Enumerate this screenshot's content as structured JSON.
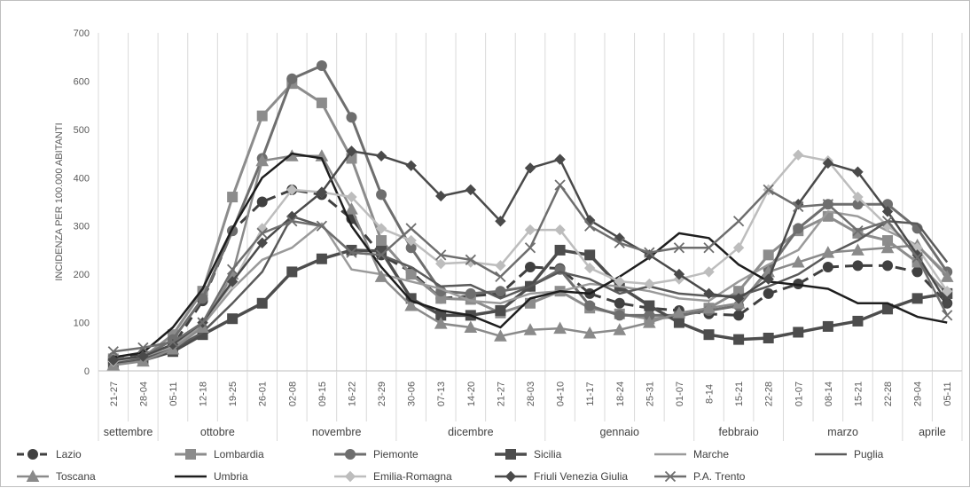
{
  "chart_data": {
    "type": "line",
    "title": "",
    "ylabel": "INCIDENZA PER 100.000 ABITANTI",
    "xlabel": "",
    "ylim": [
      0,
      700
    ],
    "yticks": [
      "0",
      "100",
      "200",
      "300",
      "400",
      "500",
      "600",
      "700"
    ],
    "grid": "vertical",
    "legend_position": "bottom",
    "x": [
      "21-27",
      "28-04",
      "05-11",
      "12-18",
      "19-25",
      "26-01",
      "02-08",
      "09-15",
      "16-22",
      "23-29",
      "30-06",
      "07-13",
      "14-20",
      "21-27",
      "28-03",
      "04-10",
      "11-17",
      "18-24",
      "25-31",
      "01-07",
      "8-14",
      "15-21",
      "22-28",
      "01-07",
      "08-14",
      "15-21",
      "22-28",
      "29-04",
      "05-11"
    ],
    "months": [
      {
        "label": "settembre",
        "start": 0,
        "end": 1
      },
      {
        "label": "ottobre",
        "start": 2,
        "end": 5
      },
      {
        "label": "novembre",
        "start": 6,
        "end": 9
      },
      {
        "label": "dicembre",
        "start": 10,
        "end": 14
      },
      {
        "label": "gennaio",
        "start": 15,
        "end": 19
      },
      {
        "label": "febbraio",
        "start": 20,
        "end": 22
      },
      {
        "label": "marzo",
        "start": 23,
        "end": 26
      },
      {
        "label": "aprile",
        "start": 27,
        "end": 28
      }
    ],
    "series": [
      {
        "name": "Lazio",
        "color": "#404040",
        "dash": true,
        "marker": "circle",
        "width": 3,
        "values": [
          28,
          35,
          52,
          145,
          290,
          350,
          375,
          365,
          315,
          240,
          205,
          150,
          155,
          160,
          215,
          212,
          160,
          140,
          130,
          125,
          118,
          115,
          160,
          180,
          215,
          218,
          218,
          205,
          140
        ]
      },
      {
        "name": "Lombardia",
        "color": "#8c8c8c",
        "dash": false,
        "marker": "square",
        "width": 3,
        "values": [
          25,
          28,
          75,
          165,
          360,
          528,
          595,
          555,
          440,
          270,
          200,
          150,
          148,
          120,
          140,
          165,
          130,
          118,
          108,
          112,
          130,
          165,
          240,
          290,
          320,
          285,
          270,
          225,
          160
        ]
      },
      {
        "name": "Piemonte",
        "color": "#6e6e6e",
        "dash": false,
        "marker": "circle",
        "width": 3,
        "values": [
          22,
          28,
          65,
          150,
          290,
          440,
          605,
          632,
          525,
          365,
          255,
          165,
          160,
          165,
          175,
          210,
          135,
          115,
          115,
          115,
          125,
          135,
          210,
          295,
          345,
          345,
          345,
          295,
          205
        ]
      },
      {
        "name": "Sicilia",
        "color": "#4d4d4d",
        "dash": false,
        "marker": "square",
        "width": 3.5,
        "values": [
          15,
          22,
          40,
          75,
          108,
          140,
          205,
          232,
          250,
          248,
          150,
          115,
          115,
          125,
          175,
          250,
          240,
          175,
          135,
          100,
          75,
          65,
          68,
          80,
          92,
          103,
          128,
          150,
          160
        ]
      },
      {
        "name": "Marche",
        "color": "#9a9a9a",
        "dash": false,
        "marker": "none",
        "width": 2.5,
        "values": [
          20,
          25,
          50,
          95,
          170,
          230,
          255,
          305,
          210,
          200,
          185,
          170,
          145,
          140,
          160,
          165,
          180,
          175,
          165,
          150,
          145,
          185,
          220,
          250,
          330,
          320,
          290,
          260,
          200
        ]
      },
      {
        "name": "Puglia",
        "color": "#5a5a5a",
        "dash": false,
        "marker": "none",
        "width": 2.5,
        "values": [
          20,
          25,
          45,
          80,
          140,
          205,
          320,
          300,
          245,
          240,
          215,
          175,
          178,
          150,
          175,
          205,
          190,
          160,
          175,
          160,
          155,
          155,
          175,
          200,
          240,
          270,
          310,
          305,
          225
        ]
      },
      {
        "name": "Toscana",
        "color": "#8a8a8a",
        "dash": false,
        "marker": "triangle",
        "width": 2.5,
        "values": [
          12,
          20,
          45,
          90,
          200,
          435,
          445,
          445,
          335,
          195,
          135,
          98,
          90,
          72,
          85,
          88,
          78,
          85,
          100,
          120,
          130,
          140,
          205,
          225,
          245,
          250,
          255,
          260,
          195
        ]
      },
      {
        "name": "Umbria",
        "color": "#1e1e1e",
        "dash": false,
        "marker": "none",
        "width": 2.5,
        "values": [
          28,
          38,
          90,
          170,
          295,
          400,
          450,
          440,
          300,
          215,
          145,
          125,
          115,
          90,
          150,
          165,
          160,
          195,
          235,
          285,
          275,
          220,
          185,
          178,
          170,
          140,
          140,
          112,
          100
        ]
      },
      {
        "name": "Emilia-Romagna",
        "color": "#bdbdbd",
        "dash": false,
        "marker": "diamond",
        "width": 2.5,
        "values": [
          20,
          30,
          55,
          100,
          180,
          295,
          375,
          370,
          360,
          295,
          270,
          222,
          225,
          218,
          292,
          292,
          213,
          185,
          180,
          190,
          205,
          255,
          375,
          447,
          435,
          360,
          300,
          255,
          165
        ]
      },
      {
        "name": "Friuli Venezia Giulia",
        "color": "#4a4a4a",
        "dash": false,
        "marker": "diamond",
        "width": 2.5,
        "values": [
          22,
          30,
          55,
          100,
          185,
          265,
          320,
          370,
          455,
          445,
          425,
          362,
          375,
          310,
          420,
          438,
          312,
          275,
          240,
          200,
          160,
          150,
          190,
          345,
          430,
          412,
          330,
          240,
          140
        ]
      },
      {
        "name": "P.A. Trento",
        "color": "#6e6e6e",
        "dash": false,
        "marker": "x",
        "width": 2.5,
        "values": [
          40,
          48,
          60,
          100,
          210,
          285,
          310,
          300,
          245,
          240,
          295,
          240,
          230,
          195,
          255,
          385,
          300,
          265,
          245,
          255,
          255,
          310,
          375,
          340,
          345,
          290,
          310,
          235,
          115
        ]
      }
    ]
  }
}
